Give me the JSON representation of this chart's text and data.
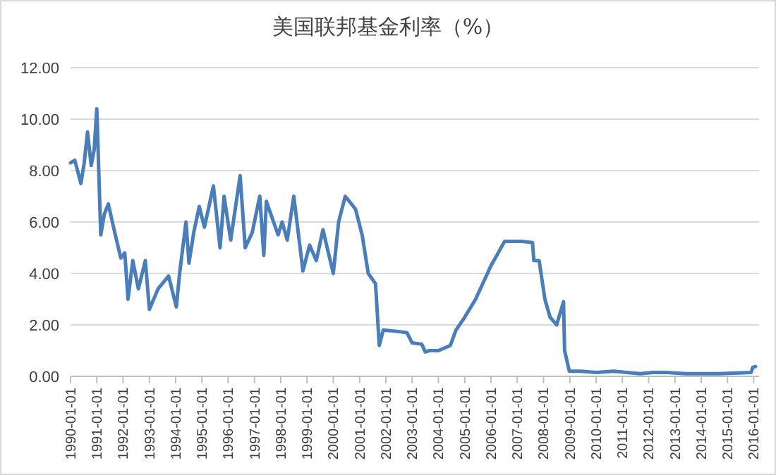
{
  "chart_data": {
    "type": "line",
    "title": "美国联邦基金利率（%）",
    "x": [
      "1990-01-01",
      "1990-03-01",
      "1990-05-25",
      "1990-07-10",
      "1990-08-25",
      "1990-10-15",
      "1990-11-25",
      "1991-01-01",
      "1991-02-25",
      "1991-04-15",
      "1991-06-10",
      "1991-09-15",
      "1991-12-01",
      "1992-01-25",
      "1992-03-10",
      "1992-05-15",
      "1992-08-01",
      "1992-11-05",
      "1993-01-01",
      "1993-05-01",
      "1993-09-25",
      "1994-01-10",
      "1994-03-01",
      "1994-05-25",
      "1994-07-05",
      "1994-09-10",
      "1994-11-25",
      "1995-02-05",
      "1995-06-10",
      "1995-09-10",
      "1995-11-05",
      "1996-02-05",
      "1996-06-15",
      "1996-08-25",
      "1996-12-01",
      "1997-03-15",
      "1997-05-10",
      "1997-06-15",
      "1997-11-25",
      "1998-01-20",
      "1998-04-01",
      "1998-07-01",
      "1998-11-05",
      "1999-02-05",
      "1999-05-10",
      "1999-08-10",
      "2000-01-01",
      "2000-03-15",
      "2000-06-15",
      "2000-11-05",
      "2001-02-05",
      "2001-05-01",
      "2001-08-10",
      "2001-10-01",
      "2001-11-25",
      "2002-06-01",
      "2002-10-20",
      "2003-01-01",
      "2003-05-15",
      "2003-07-01",
      "2003-09-01",
      "2004-01-01",
      "2004-06-15",
      "2004-09-01",
      "2005-01-01",
      "2005-06-01",
      "2006-01-01",
      "2006-07-10",
      "2007-03-01",
      "2007-08-01",
      "2007-08-20",
      "2007-11-01",
      "2008-01-20",
      "2008-04-01",
      "2008-07-01",
      "2008-10-05",
      "2008-10-20",
      "2008-12-25",
      "2009-06-01",
      "2010-01-01",
      "2010-09-01",
      "2011-03-01",
      "2011-09-01",
      "2012-03-01",
      "2012-09-01",
      "2013-06-01",
      "2014-01-01",
      "2014-09-01",
      "2015-06-01",
      "2015-11-25",
      "2015-12-20",
      "2016-01-25"
    ],
    "values": [
      8.3,
      8.4,
      7.5,
      8.3,
      9.5,
      8.2,
      8.8,
      10.4,
      5.5,
      6.3,
      6.7,
      5.5,
      4.6,
      4.8,
      3.0,
      4.5,
      3.4,
      4.5,
      2.6,
      3.4,
      3.9,
      2.7,
      4.1,
      6.0,
      4.4,
      5.6,
      6.6,
      5.8,
      7.4,
      5.0,
      7.0,
      5.3,
      7.8,
      5.0,
      5.6,
      7.0,
      4.7,
      6.8,
      5.5,
      6.0,
      5.3,
      7.0,
      4.1,
      5.1,
      4.5,
      5.7,
      4.0,
      6.0,
      7.0,
      6.5,
      5.5,
      4.0,
      3.6,
      1.2,
      1.8,
      1.75,
      1.7,
      1.3,
      1.25,
      0.95,
      1.0,
      1.0,
      1.2,
      1.8,
      2.3,
      3.0,
      4.3,
      5.25,
      5.25,
      5.2,
      4.5,
      4.5,
      3.0,
      2.3,
      2.0,
      2.9,
      1.0,
      0.2,
      0.2,
      0.15,
      0.2,
      0.15,
      0.1,
      0.15,
      0.15,
      0.1,
      0.1,
      0.1,
      0.13,
      0.15,
      0.35,
      0.38
    ],
    "color": "#4a7ebb",
    "xlim": [
      "1990-01-01",
      "2016-03-15"
    ],
    "xticks": [
      "1990-01-01",
      "1991-01-01",
      "1992-01-01",
      "1993-01-01",
      "1994-01-01",
      "1995-01-01",
      "1996-01-01",
      "1997-01-01",
      "1998-01-01",
      "1999-01-01",
      "2000-01-01",
      "2001-01-01",
      "2002-01-01",
      "2003-01-01",
      "2004-01-01",
      "2005-01-01",
      "2006-01-01",
      "2007-01-01",
      "2008-01-01",
      "2009-01-01",
      "2010-01-01",
      "2011-01-01",
      "2012-01-01",
      "2013-01-01",
      "2014-01-01",
      "2015-01-01",
      "2016-01-01"
    ],
    "ylim": [
      0,
      12
    ],
    "yticks": [
      {
        "value": 0,
        "label": "0.00"
      },
      {
        "value": 2,
        "label": "2.00"
      },
      {
        "value": 4,
        "label": "4.00"
      },
      {
        "value": 6,
        "label": "6.00"
      },
      {
        "value": 8,
        "label": "8.00"
      },
      {
        "value": 10,
        "label": "10.00"
      },
      {
        "value": 12,
        "label": "12.00"
      }
    ],
    "grid": "y"
  }
}
